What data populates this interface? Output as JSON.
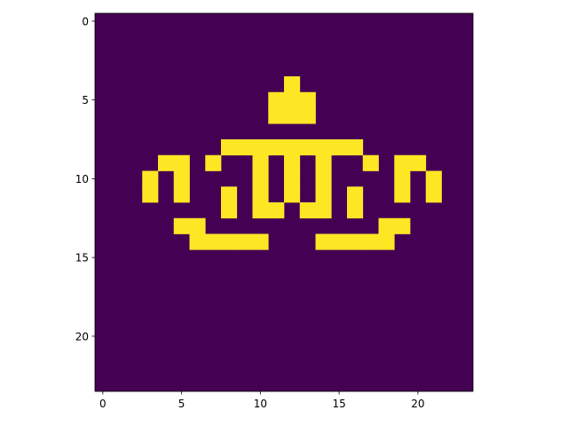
{
  "chart_data": {
    "type": "heatmap",
    "title": "",
    "xlabel": "",
    "ylabel": "",
    "rows": 24,
    "cols": 24,
    "xlim": [
      -0.5,
      23.5
    ],
    "ylim": [
      23.5,
      -0.5
    ],
    "x_ticks": [
      0,
      5,
      10,
      15,
      20
    ],
    "y_ticks": [
      0,
      5,
      10,
      15,
      20
    ],
    "x_tick_labels": [
      "0",
      "5",
      "10",
      "15",
      "20"
    ],
    "y_tick_labels": [
      "0",
      "5",
      "10",
      "15",
      "20"
    ],
    "colormap": "viridis",
    "colors": {
      "low": "#440154",
      "high": "#fde725"
    },
    "on_cells": [
      [
        4,
        12
      ],
      [
        5,
        11
      ],
      [
        5,
        12
      ],
      [
        5,
        13
      ],
      [
        6,
        11
      ],
      [
        6,
        12
      ],
      [
        6,
        13
      ],
      [
        8,
        8
      ],
      [
        8,
        9
      ],
      [
        8,
        10
      ],
      [
        8,
        11
      ],
      [
        8,
        12
      ],
      [
        8,
        13
      ],
      [
        8,
        14
      ],
      [
        8,
        15
      ],
      [
        8,
        16
      ],
      [
        9,
        4
      ],
      [
        9,
        5
      ],
      [
        9,
        7
      ],
      [
        9,
        10
      ],
      [
        9,
        12
      ],
      [
        9,
        14
      ],
      [
        9,
        17
      ],
      [
        9,
        19
      ],
      [
        9,
        20
      ],
      [
        10,
        3
      ],
      [
        10,
        5
      ],
      [
        10,
        10
      ],
      [
        10,
        12
      ],
      [
        10,
        14
      ],
      [
        10,
        19
      ],
      [
        10,
        21
      ],
      [
        11,
        3
      ],
      [
        11,
        5
      ],
      [
        11,
        8
      ],
      [
        11,
        10
      ],
      [
        11,
        12
      ],
      [
        11,
        14
      ],
      [
        11,
        16
      ],
      [
        11,
        19
      ],
      [
        11,
        21
      ],
      [
        12,
        8
      ],
      [
        12,
        10
      ],
      [
        12,
        11
      ],
      [
        12,
        13
      ],
      [
        12,
        14
      ],
      [
        12,
        16
      ],
      [
        13,
        5
      ],
      [
        13,
        6
      ],
      [
        13,
        18
      ],
      [
        13,
        19
      ],
      [
        14,
        6
      ],
      [
        14,
        7
      ],
      [
        14,
        8
      ],
      [
        14,
        9
      ],
      [
        14,
        10
      ],
      [
        14,
        14
      ],
      [
        14,
        15
      ],
      [
        14,
        16
      ],
      [
        14,
        17
      ],
      [
        14,
        18
      ]
    ]
  }
}
